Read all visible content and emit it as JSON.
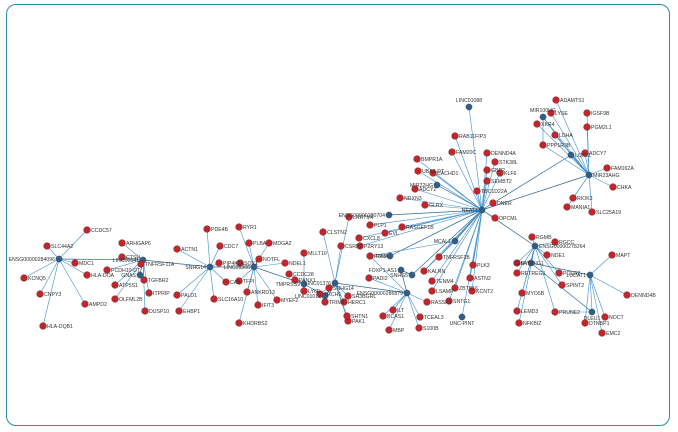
{
  "colors": {
    "hub": "#2f5f86",
    "leaf": "#c0262b",
    "edge_hub": "#2b6a96",
    "edge_leaf": "#3b8fd0",
    "frame": "#2a8fa4"
  },
  "nodes": [
    {
      "id": "LINC01088",
      "kind": "hub"
    },
    {
      "id": "UNC-PINT",
      "kind": "hub"
    },
    {
      "id": "MIR100HG",
      "kind": "hub"
    },
    {
      "id": "ENSG00000284096",
      "kind": "hub"
    },
    {
      "id": "GNAS",
      "kind": "hub"
    },
    {
      "id": "LINC00641",
      "kind": "hub"
    },
    {
      "id": "SNHG14",
      "kind": "hub"
    },
    {
      "id": "LINC01366",
      "kind": "hub"
    },
    {
      "id": "TMPRSS9",
      "kind": "hub"
    },
    {
      "id": "LINC01012",
      "kind": "hub"
    },
    {
      "id": "ENSG00000280704",
      "kind": "hub"
    },
    {
      "id": "LINC01376",
      "kind": "hub"
    },
    {
      "id": "FOXP1-AS1",
      "kind": "hub"
    },
    {
      "id": "SNHG5",
      "kind": "hub"
    },
    {
      "id": "ENSG00000286879",
      "kind": "hub"
    },
    {
      "id": "ENSG00000278264",
      "kind": "hub"
    },
    {
      "id": "RP3",
      "kind": "hub"
    },
    {
      "id": "CEFA",
      "kind": "hub"
    },
    {
      "id": "LUCAT1",
      "kind": "hub"
    },
    {
      "id": "DLEU1",
      "kind": "hub"
    },
    {
      "id": "NEAT1",
      "kind": "hub"
    },
    {
      "id": "MIR23AHG",
      "kind": "hub"
    },
    {
      "id": "LOXL1",
      "kind": "hub"
    },
    {
      "id": "MCAL1",
      "kind": "hub"
    },
    {
      "id": "MIR22HG",
      "kind": "hub"
    },
    {
      "id": "CCDC57",
      "kind": "leaf"
    },
    {
      "id": "SLC44A2",
      "kind": "leaf"
    },
    {
      "id": "MDC1",
      "kind": "leaf"
    },
    {
      "id": "KCNQ5",
      "kind": "leaf"
    },
    {
      "id": "HLA-DOA",
      "kind": "leaf"
    },
    {
      "id": "CNPY3",
      "kind": "leaf"
    },
    {
      "id": "AMPD2",
      "kind": "leaf"
    },
    {
      "id": "HLA-DQB1",
      "kind": "leaf"
    },
    {
      "id": "ARHGAP6",
      "kind": "leaf"
    },
    {
      "id": "CTSH",
      "kind": "leaf"
    },
    {
      "id": "TNFRSF11A",
      "kind": "leaf"
    },
    {
      "id": "PCDH10-DT",
      "kind": "leaf"
    },
    {
      "id": "ATP5S1",
      "kind": "leaf"
    },
    {
      "id": "TGFBR2",
      "kind": "leaf"
    },
    {
      "id": "OLFML2B",
      "kind": "leaf"
    },
    {
      "id": "ITPRIP",
      "kind": "leaf"
    },
    {
      "id": "DUSP10",
      "kind": "leaf"
    },
    {
      "id": "ACTN1",
      "kind": "leaf"
    },
    {
      "id": "PDE4B",
      "kind": "leaf"
    },
    {
      "id": "CDC7",
      "kind": "leaf"
    },
    {
      "id": "PIP4K2A",
      "kind": "leaf"
    },
    {
      "id": "CA8",
      "kind": "leaf"
    },
    {
      "id": "PALD1",
      "kind": "leaf"
    },
    {
      "id": "SLC16A10",
      "kind": "leaf"
    },
    {
      "id": "EHBP1",
      "kind": "leaf"
    },
    {
      "id": "RYR1",
      "kind": "leaf"
    },
    {
      "id": "PLBA",
      "kind": "leaf"
    },
    {
      "id": "MDGA2",
      "kind": "leaf"
    },
    {
      "id": "SOX1",
      "kind": "leaf"
    },
    {
      "id": "NOTFL",
      "kind": "leaf"
    },
    {
      "id": "NDEL1",
      "kind": "leaf"
    },
    {
      "id": "TFPI",
      "kind": "leaf"
    },
    {
      "id": "ANKRD13",
      "kind": "leaf"
    },
    {
      "id": "MYEF2",
      "kind": "leaf"
    },
    {
      "id": "IFIT3",
      "kind": "leaf"
    },
    {
      "id": "KHDRBS2",
      "kind": "leaf"
    },
    {
      "id": "MLLT10",
      "kind": "leaf"
    },
    {
      "id": "CCDC28",
      "kind": "leaf"
    },
    {
      "id": "PANX1",
      "kind": "leaf"
    },
    {
      "id": "LY6E",
      "kind": "leaf"
    },
    {
      "id": "CLSTN2",
      "kind": "leaf"
    },
    {
      "id": "LRRTM4",
      "kind": "leaf"
    },
    {
      "id": "CSRP2",
      "kind": "leaf"
    },
    {
      "id": "SNHG14",
      "kind": "leaf"
    },
    {
      "id": "TRCH1",
      "kind": "leaf"
    },
    {
      "id": "TRIM3",
      "kind": "leaf"
    },
    {
      "id": "HERC1",
      "kind": "leaf"
    },
    {
      "id": "SH3BGRL",
      "kind": "leaf"
    },
    {
      "id": "PAK1",
      "kind": "leaf"
    },
    {
      "id": "SHTN1",
      "kind": "leaf"
    },
    {
      "id": "PLP1",
      "kind": "leaf"
    },
    {
      "id": "CXCL8",
      "kind": "leaf"
    },
    {
      "id": "P2RY13",
      "kind": "leaf"
    },
    {
      "id": "EVL",
      "kind": "leaf"
    },
    {
      "id": "PTMA",
      "kind": "leaf"
    },
    {
      "id": "PADI2",
      "kind": "leaf"
    },
    {
      "id": "ILT",
      "kind": "leaf"
    },
    {
      "id": "BCAS1",
      "kind": "leaf"
    },
    {
      "id": "MBP",
      "kind": "leaf"
    },
    {
      "id": "TCEAL3",
      "kind": "leaf"
    },
    {
      "id": "RASSF3",
      "kind": "leaf"
    },
    {
      "id": "S100B",
      "kind": "leaf"
    },
    {
      "id": "LSAMP",
      "kind": "leaf"
    },
    {
      "id": "SNTG1",
      "kind": "leaf"
    },
    {
      "id": "KALRN",
      "kind": "leaf"
    },
    {
      "id": "TENM4",
      "kind": "leaf"
    },
    {
      "id": "ZBTB16",
      "kind": "leaf"
    },
    {
      "id": "KCNT2",
      "kind": "leaf"
    },
    {
      "id": "ASTN2",
      "kind": "leaf"
    },
    {
      "id": "PLK3",
      "kind": "leaf"
    },
    {
      "id": "TNFRSF1B",
      "kind": "leaf"
    },
    {
      "id": "RASGEF1B",
      "kind": "leaf"
    },
    {
      "id": "NRXN3",
      "kind": "leaf"
    },
    {
      "id": "GLRX",
      "kind": "leaf"
    },
    {
      "id": "ADCY2",
      "kind": "leaf"
    },
    {
      "id": "UBA6-DT",
      "kind": "leaf"
    },
    {
      "id": "CACHD1",
      "kind": "leaf"
    },
    {
      "id": "BMPR1A",
      "kind": "leaf"
    },
    {
      "id": "FAM20C",
      "kind": "leaf"
    },
    {
      "id": "RAB11FIP3",
      "kind": "leaf"
    },
    {
      "id": "DENND4A",
      "kind": "leaf"
    },
    {
      "id": "STK38L",
      "kind": "leaf"
    },
    {
      "id": "GBP2",
      "kind": "leaf"
    },
    {
      "id": "KLF6",
      "kind": "leaf"
    },
    {
      "id": "SEMBT2",
      "kind": "leaf"
    },
    {
      "id": "TBC1D22A",
      "kind": "leaf"
    },
    {
      "id": "DNER",
      "kind": "leaf"
    },
    {
      "id": "OPCML",
      "kind": "leaf"
    },
    {
      "id": "ADAMTS1",
      "kind": "leaf"
    },
    {
      "id": "IGSF9B",
      "kind": "leaf"
    },
    {
      "id": "LYSE",
      "kind": "leaf"
    },
    {
      "id": "XKR4",
      "kind": "leaf"
    },
    {
      "id": "LDHA",
      "kind": "leaf"
    },
    {
      "id": "PGM2L1",
      "kind": "leaf"
    },
    {
      "id": "PPP1R3B",
      "kind": "leaf"
    },
    {
      "id": "ADCY7",
      "kind": "leaf"
    },
    {
      "id": "FAM162A",
      "kind": "leaf"
    },
    {
      "id": "CHKA",
      "kind": "leaf"
    },
    {
      "id": "MANIA1",
      "kind": "leaf"
    },
    {
      "id": "SLC25A19",
      "kind": "leaf"
    },
    {
      "id": "RIOK3",
      "kind": "leaf"
    },
    {
      "id": "MAPT",
      "kind": "leaf"
    },
    {
      "id": "DENND4B",
      "kind": "leaf"
    },
    {
      "id": "NOCT",
      "kind": "leaf"
    },
    {
      "id": "DTNBP1",
      "kind": "leaf"
    },
    {
      "id": "EMC2",
      "kind": "leaf"
    },
    {
      "id": "RGCC",
      "kind": "leaf"
    },
    {
      "id": "NDE1",
      "kind": "leaf"
    },
    {
      "id": "POLG2",
      "kind": "leaf"
    },
    {
      "id": "SPINT2",
      "kind": "leaf"
    },
    {
      "id": "PRUNE2",
      "kind": "leaf"
    },
    {
      "id": "NFKBIZ",
      "kind": "leaf"
    },
    {
      "id": "LEMD3",
      "kind": "leaf"
    },
    {
      "id": "MYO5B",
      "kind": "leaf"
    },
    {
      "id": "RETREG1",
      "kind": "leaf"
    },
    {
      "id": "SYNDIG1",
      "kind": "leaf"
    },
    {
      "id": "RGMB",
      "kind": "leaf"
    }
  ]
}
